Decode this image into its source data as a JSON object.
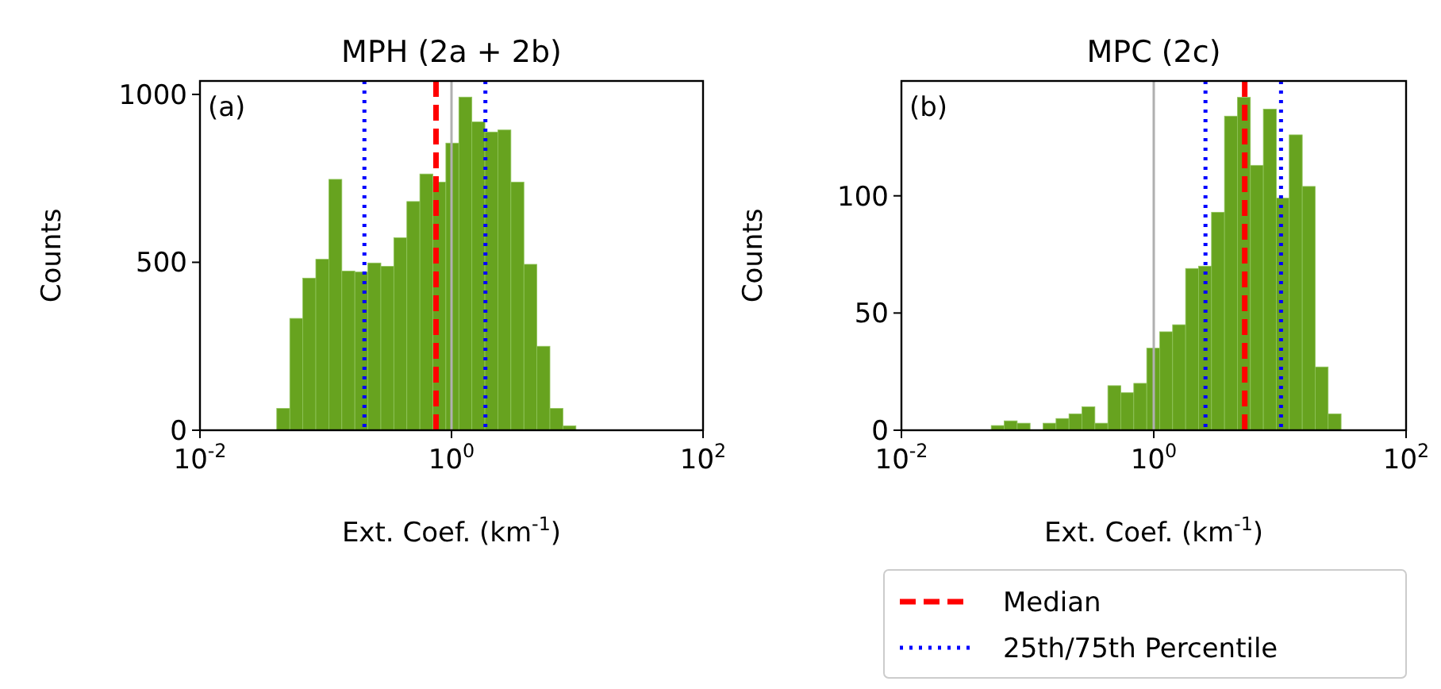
{
  "chart_data": [
    {
      "type": "histogram",
      "title": "MPH (2a + 2b)",
      "xlabel": "Ext. Coef. (km$^{-1}$)",
      "ylabel": "Counts",
      "annotations": [
        "(a)"
      ],
      "log": "x",
      "color": "#67a31f",
      "bins": [
        0.0408,
        0.0518,
        0.0657,
        0.0834,
        0.1058,
        0.1343,
        0.1703,
        0.2162,
        0.2744,
        0.3479,
        0.4416,
        0.5603,
        0.7108,
        0.902,
        1.1445,
        1.4521,
        1.8425,
        2.338,
        2.966,
        3.764,
        4.775,
        6.059,
        7.688,
        9.755
      ],
      "values": [
        65,
        333,
        453,
        509,
        747,
        474,
        471,
        498,
        488,
        573,
        681,
        763,
        739,
        855,
        992,
        918,
        888,
        894,
        739,
        494,
        250,
        65,
        13
      ],
      "xlim": [
        0.01,
        100
      ],
      "xticks": [
        {
          "value": 0.01,
          "label": "10$^{-2}$"
        },
        {
          "value": 1,
          "label": "10$^{0}$"
        },
        {
          "value": 100,
          "label": "10$^{2}$"
        }
      ],
      "ylim": [
        0,
        1040
      ],
      "yticks": [
        0,
        500,
        1000
      ],
      "grid": false,
      "legend": "bottom right",
      "ref_lines": [
        {
          "axis": "x",
          "value": 1,
          "color": "#b0b0b0",
          "line_style": "solid"
        },
        {
          "axis": "x",
          "value": 0.753,
          "label": "Median",
          "color": "#ff0000",
          "line_style": "dashed"
        },
        {
          "axis": "x",
          "value": 0.203,
          "label": "25th/75th Percentile",
          "color": "#0000ff",
          "line_style": "dotted"
        },
        {
          "axis": "x",
          "value": 1.86,
          "color": "#0000ff",
          "line_style": "dotted"
        }
      ]
    },
    {
      "type": "histogram",
      "title": "MPC (2c)",
      "xlabel": "Ext. Coef. (km$^{-1}$)",
      "ylabel": "Counts",
      "annotations": [
        "(b)"
      ],
      "log": "x",
      "color": "#67a31f",
      "bins": [
        0.0515,
        0.0653,
        0.0827,
        0.1047,
        0.1327,
        0.168,
        0.2129,
        0.2698,
        0.3416,
        0.4328,
        0.5483,
        0.6945,
        0.8798,
        1.1144,
        1.4115,
        1.7882,
        2.2655,
        2.8703,
        3.636,
        4.606,
        5.834,
        7.39,
        9.363,
        11.86,
        15.03,
        19.03,
        24.11,
        30.54
      ],
      "values": [
        2,
        4,
        3,
        0,
        3,
        5,
        7,
        10,
        3,
        19,
        16,
        20,
        35,
        42,
        45,
        69,
        70,
        93,
        134,
        142,
        113,
        137,
        99,
        126,
        104,
        27,
        7
      ],
      "xlim": [
        0.01,
        100
      ],
      "xticks": [
        {
          "value": 0.01,
          "label": "10$^{-2}$"
        },
        {
          "value": 1,
          "label": "10$^{0}$"
        },
        {
          "value": 100,
          "label": "10$^{2}$"
        }
      ],
      "ylim": [
        0,
        149
      ],
      "yticks": [
        0,
        50,
        100
      ],
      "grid": false,
      "ref_lines": [
        {
          "axis": "x",
          "value": 1,
          "color": "#b0b0b0",
          "line_style": "solid"
        },
        {
          "axis": "x",
          "value": 5.26,
          "color": "#ff0000",
          "line_style": "dashed"
        },
        {
          "axis": "x",
          "value": 2.57,
          "color": "#0000ff",
          "line_style": "dotted"
        },
        {
          "axis": "x",
          "value": 10.2,
          "color": "#0000ff",
          "line_style": "dotted"
        }
      ]
    }
  ]
}
